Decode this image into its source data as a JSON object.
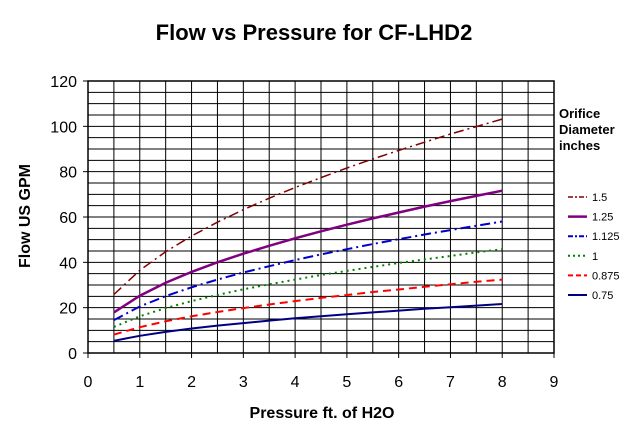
{
  "chart_data": {
    "type": "line",
    "title": "Flow vs Pressure for CF-LHD2",
    "xlabel": "Pressure  ft. of H2O",
    "ylabel": "Flow  US GPM",
    "xlim": [
      0,
      9
    ],
    "ylim": [
      0,
      120
    ],
    "x_ticks": [
      "0",
      "1",
      "2",
      "3",
      "4",
      "5",
      "6",
      "7",
      "8",
      "9"
    ],
    "y_ticks": [
      "0",
      "20",
      "40",
      "60",
      "80",
      "100",
      "120"
    ],
    "grid": true,
    "legend_title": [
      "Orifice",
      "Diameter",
      "inches"
    ],
    "legend_position": "right",
    "x": [
      0.5,
      1,
      1.5,
      2,
      2.5,
      3,
      3.5,
      4,
      4.5,
      5,
      5.5,
      6,
      6.5,
      7,
      7.5,
      8
    ],
    "series": [
      {
        "name": "1.5",
        "color": "#800000",
        "dash": "10,4,2,4",
        "width": 1.5,
        "values": [
          25.8,
          36.5,
          44.7,
          51.6,
          57.7,
          63.2,
          68.3,
          73.0,
          77.4,
          81.6,
          85.6,
          89.4,
          93.0,
          96.6,
          99.9,
          103.2
        ]
      },
      {
        "name": "1.25",
        "color": "#800080",
        "dash": "",
        "width": 2.5,
        "values": [
          17.9,
          25.3,
          31.0,
          35.8,
          40.0,
          43.8,
          47.3,
          50.6,
          53.7,
          56.6,
          59.4,
          62.0,
          64.6,
          67.0,
          69.3,
          71.6
        ]
      },
      {
        "name": "1.125",
        "color": "#0000cc",
        "dash": "10,4,2,4",
        "width": 2,
        "values": [
          14.5,
          20.5,
          25.1,
          29.0,
          32.4,
          35.5,
          38.3,
          41.0,
          43.5,
          45.8,
          48.1,
          50.2,
          52.3,
          54.2,
          56.1,
          58.0
        ]
      },
      {
        "name": "1",
        "color": "#008000",
        "dash": "2,4",
        "width": 2,
        "values": [
          11.5,
          16.2,
          19.8,
          22.9,
          25.6,
          28.1,
          30.3,
          32.4,
          34.4,
          36.2,
          38.0,
          39.7,
          41.3,
          42.8,
          44.4,
          45.8
        ]
      },
      {
        "name": "0.875",
        "color": "#ff0000",
        "dash": "8,5",
        "width": 2,
        "values": [
          8.1,
          11.4,
          14.0,
          16.2,
          18.1,
          19.8,
          21.4,
          22.9,
          24.3,
          25.6,
          26.9,
          28.0,
          29.2,
          30.3,
          31.4,
          32.4
        ]
      },
      {
        "name": "0.75",
        "color": "#000080",
        "dash": "",
        "width": 2,
        "values": [
          5.4,
          7.6,
          9.3,
          10.8,
          12.1,
          13.2,
          14.3,
          15.3,
          16.2,
          17.1,
          17.9,
          18.7,
          19.5,
          20.2,
          20.9,
          21.6
        ]
      }
    ]
  }
}
